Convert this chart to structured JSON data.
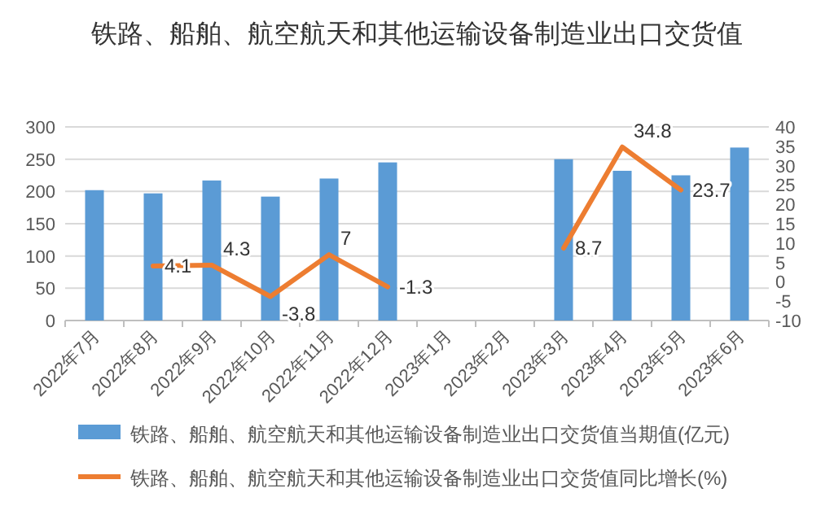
{
  "chart_data": {
    "type": "bar",
    "title": "铁路、船舶、航空航天和其他运输设备制造业出口交货值",
    "categories": [
      "2022年7月",
      "2022年8月",
      "2022年9月",
      "2022年10月",
      "2022年11月",
      "2022年12月",
      "2023年1月",
      "2023年2月",
      "2023年3月",
      "2023年4月",
      "2023年5月",
      "2023年6月"
    ],
    "series": [
      {
        "name": "铁路、船舶、航空航天和其他运输设备制造业出口交货值当期值(亿元)",
        "color": "#5b9bd5",
        "values": [
          202,
          197,
          217,
          192,
          220,
          245,
          null,
          null,
          250,
          232,
          225,
          268
        ]
      },
      {
        "name": "铁路、船舶、航空航天和其他运输设备制造业出口交货值同比增长(%)",
        "type": "line",
        "axis": "y2",
        "color": "#ed7d31",
        "values": [
          null,
          4.1,
          4.3,
          -3.8,
          7,
          -1.3,
          null,
          null,
          8.7,
          34.8,
          23.7,
          null
        ],
        "value_labels": [
          null,
          "4.1",
          "4.3",
          "-3.8",
          "7",
          "-1.3",
          null,
          null,
          "8.7",
          "34.8",
          "23.7",
          null
        ]
      }
    ],
    "ylim": [
      0,
      300
    ],
    "yticks": [
      0,
      50,
      100,
      150,
      200,
      250,
      300
    ],
    "y2lim": [
      -10,
      40
    ],
    "y2ticks": [
      -10,
      -5,
      0,
      5,
      10,
      15,
      20,
      25,
      30,
      35,
      40
    ],
    "grid": "y",
    "legend": "bottom"
  }
}
